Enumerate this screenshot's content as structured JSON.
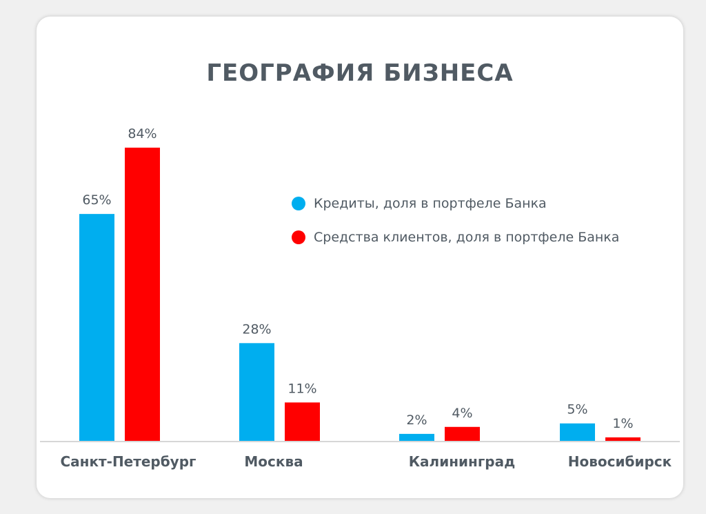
{
  "chart_data": {
    "type": "bar",
    "title": "ГЕОГРАФИЯ БИЗНЕСА",
    "categories": [
      "Санкт-Петербург",
      "Москва",
      "Калининград",
      "Новосибирск"
    ],
    "series": [
      {
        "name": "Кредиты, доля в портфеле Банка",
        "color": "#00aeef",
        "values": [
          65,
          28,
          2,
          5
        ],
        "labels": [
          "65%",
          "28%",
          "2%",
          "5%"
        ]
      },
      {
        "name": "Средства клиентов, доля в портфеле Банка",
        "color": "#ff0000",
        "values": [
          84,
          11,
          4,
          1
        ],
        "labels": [
          "84%",
          "11%",
          "4%",
          "1%"
        ]
      }
    ],
    "xlabel": "",
    "ylabel": "",
    "ylim": [
      0,
      84
    ],
    "grid": false,
    "legend_position": "top-right"
  }
}
